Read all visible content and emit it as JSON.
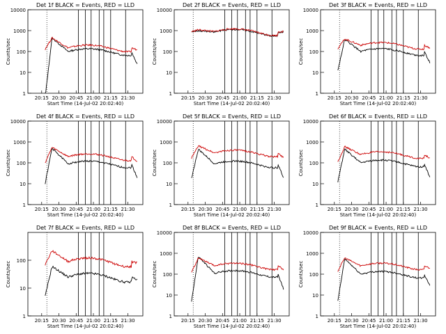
{
  "chart_data": [
    {
      "type": "line",
      "title": "Det 1f BLACK = Events, RED = LLD",
      "xlabel": "Start Time (14-Jul-02 20:02:40)",
      "ylabel": "Counts/sec",
      "yscale": "log",
      "ylim": [
        1,
        10000
      ],
      "ytick_labels": [
        "1",
        "10",
        "100",
        "1000",
        "10000"
      ],
      "xtick_labels": [
        "20:15",
        "20:30",
        "20:45",
        "21:00",
        "21:15",
        "21:30"
      ],
      "series": [
        {
          "color": "#000000",
          "start": 0.6,
          "peak": 450,
          "base": 100,
          "end": 25
        },
        {
          "color": "#cc0000",
          "start": 130,
          "peak": 450,
          "base": 150,
          "end": 120
        }
      ],
      "attenuator_lines": 5
    },
    {
      "type": "line",
      "title": "Det 2f BLACK = Events, RED = LLD",
      "xlabel": "Start Time (14-Jul-02 20:02:40)",
      "ylabel": "Counts/sec",
      "yscale": "log",
      "ylim": [
        1,
        10000
      ],
      "ytick_labels": [
        "1",
        "10",
        "100",
        "1000",
        "10000"
      ],
      "xtick_labels": [
        "20:15",
        "20:30",
        "20:45",
        "21:00",
        "21:15",
        "21:30"
      ],
      "series": [
        {
          "color": "#000000",
          "start": 900,
          "peak": 1000,
          "base": 850,
          "end": 850
        },
        {
          "color": "#cc0000",
          "start": 900,
          "peak": 1100,
          "base": 900,
          "end": 900
        }
      ],
      "attenuator_lines": 5
    },
    {
      "type": "line",
      "title": "Det 3f BLACK = Events, RED = LLD",
      "xlabel": "Start Time (14-Jul-02 20:02:40)",
      "ylabel": "Counts/sec",
      "yscale": "log",
      "ylim": [
        1,
        10000
      ],
      "ytick_labels": [
        "1",
        "10",
        "100",
        "1000",
        "10000"
      ],
      "xtick_labels": [
        "20:15",
        "20:30",
        "20:45",
        "21:00",
        "21:15",
        "21:30"
      ],
      "series": [
        {
          "color": "#000000",
          "start": 12,
          "peak": 380,
          "base": 100,
          "end": 30
        },
        {
          "color": "#cc0000",
          "start": 140,
          "peak": 400,
          "base": 200,
          "end": 150
        }
      ],
      "attenuator_lines": 5
    },
    {
      "type": "line",
      "title": "Det 4f BLACK = Events, RED = LLD",
      "xlabel": "Start Time (14-Jul-02 20:02:40)",
      "ylabel": "Counts/sec",
      "yscale": "log",
      "ylim": [
        1,
        10000
      ],
      "ytick_labels": [
        "1",
        "10",
        "100",
        "1000",
        "10000"
      ],
      "xtick_labels": [
        "20:15",
        "20:30",
        "20:45",
        "21:00",
        "21:15",
        "21:30"
      ],
      "series": [
        {
          "color": "#000000",
          "start": 10,
          "peak": 500,
          "base": 90,
          "end": 20
        },
        {
          "color": "#cc0000",
          "start": 100,
          "peak": 550,
          "base": 200,
          "end": 120
        }
      ],
      "attenuator_lines": 5
    },
    {
      "type": "line",
      "title": "Det 5f BLACK = Events, RED = LLD",
      "xlabel": "Start Time (14-Jul-02 20:02:40)",
      "ylabel": "Counts/sec",
      "yscale": "log",
      "ylim": [
        1,
        10000
      ],
      "ytick_labels": [
        "1",
        "10",
        "100",
        "1000",
        "10000"
      ],
      "xtick_labels": [
        "20:15",
        "20:30",
        "20:45",
        "21:00",
        "21:15",
        "21:30"
      ],
      "series": [
        {
          "color": "#000000",
          "start": 18,
          "peak": 450,
          "base": 90,
          "end": 20
        },
        {
          "color": "#cc0000",
          "start": 170,
          "peak": 650,
          "base": 300,
          "end": 180
        }
      ],
      "attenuator_lines": 5
    },
    {
      "type": "line",
      "title": "Det 6f BLACK = Events, RED = LLD",
      "xlabel": "Start Time (14-Jul-02 20:02:40)",
      "ylabel": "Counts/sec",
      "yscale": "log",
      "ylim": [
        1,
        10000
      ],
      "ytick_labels": [
        "1",
        "10",
        "100",
        "1000",
        "10000"
      ],
      "xtick_labels": [
        "20:15",
        "20:30",
        "20:45",
        "21:00",
        "21:15",
        "21:30"
      ],
      "series": [
        {
          "color": "#000000",
          "start": 12,
          "peak": 450,
          "base": 100,
          "end": 20
        },
        {
          "color": "#cc0000",
          "start": 110,
          "peak": 600,
          "base": 250,
          "end": 170
        }
      ],
      "attenuator_lines": 5
    },
    {
      "type": "line",
      "title": "Det 7f BLACK = Events, RED = LLD",
      "xlabel": "Start Time (14-Jul-02 20:02:40)",
      "ylabel": "Counts/sec",
      "yscale": "log",
      "ylim": [
        1,
        1000
      ],
      "ytick_labels": [
        "1",
        "10",
        "100"
      ],
      "xtick_labels": [
        "20:15",
        "20:30",
        "20:45",
        "21:00",
        "21:15",
        "21:30"
      ],
      "series": [
        {
          "color": "#000000",
          "start": 5,
          "peak": 60,
          "base": 25,
          "end": 20
        },
        {
          "color": "#cc0000",
          "start": 70,
          "peak": 220,
          "base": 90,
          "end": 80
        }
      ],
      "attenuator_lines": 3
    },
    {
      "type": "line",
      "title": "Det 8f BLACK = Events, RED = LLD",
      "xlabel": "Start Time (14-Jul-02 20:02:40)",
      "ylabel": "Counts/sec",
      "yscale": "log",
      "ylim": [
        1,
        10000
      ],
      "ytick_labels": [
        "1",
        "10",
        "100",
        "1000",
        "10000"
      ],
      "xtick_labels": [
        "20:15",
        "20:30",
        "20:45",
        "21:00",
        "21:15",
        "21:30"
      ],
      "series": [
        {
          "color": "#000000",
          "start": 5,
          "peak": 700,
          "base": 110,
          "end": 20
        },
        {
          "color": "#cc0000",
          "start": 120,
          "peak": 600,
          "base": 250,
          "end": 170
        }
      ],
      "attenuator_lines": 5
    },
    {
      "type": "line",
      "title": "Det 9f BLACK = Events, RED = LLD",
      "xlabel": "Start Time (14-Jul-02 20:02:40)",
      "ylabel": "Counts/sec",
      "yscale": "log",
      "ylim": [
        1,
        10000
      ],
      "ytick_labels": [
        "1",
        "10",
        "100",
        "1000",
        "10000"
      ],
      "xtick_labels": [
        "20:15",
        "20:30",
        "20:45",
        "21:00",
        "21:15",
        "21:30"
      ],
      "series": [
        {
          "color": "#000000",
          "start": 5,
          "peak": 550,
          "base": 100,
          "end": 30
        },
        {
          "color": "#cc0000",
          "start": 140,
          "peak": 600,
          "base": 250,
          "end": 200
        }
      ],
      "attenuator_lines": 5
    }
  ]
}
